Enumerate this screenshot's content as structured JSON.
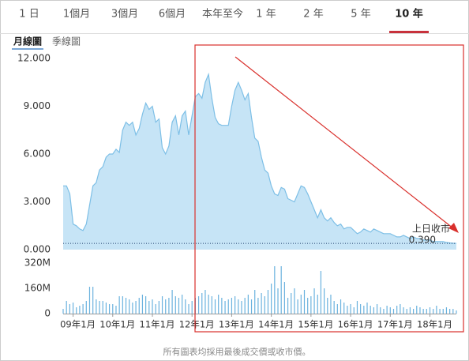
{
  "tabs": [
    "1 日",
    "1個月",
    "3個月",
    "6個月",
    "本年至今",
    "1 年",
    "2 年",
    "5 年",
    "10 年"
  ],
  "selected_tab": 8,
  "subtabs": [
    "月線圖",
    "季線圖"
  ],
  "selected_subtab": 0,
  "footer": "所有圖表均採用最後成交價或收市價。",
  "chart_data": {
    "type": "area",
    "price": {
      "color": "#7dbfe6",
      "fill": "#c6e4f6",
      "values": [
        4.0,
        4.0,
        3.5,
        1.6,
        1.5,
        1.3,
        1.2,
        1.6,
        2.8,
        4.0,
        4.2,
        5.0,
        5.2,
        5.8,
        6.0,
        6.0,
        6.3,
        6.1,
        7.5,
        8.0,
        7.8,
        8.0,
        7.2,
        7.6,
        8.5,
        9.2,
        8.8,
        9.0,
        8.0,
        8.2,
        6.4,
        6.0,
        6.5,
        8.0,
        8.4,
        7.2,
        8.4,
        8.7,
        7.2,
        8.4,
        9.6,
        9.8,
        9.5,
        10.5,
        11.0,
        9.5,
        8.3,
        7.9,
        7.8,
        7.8,
        7.8,
        9.0,
        10.0,
        10.5,
        10.0,
        9.4,
        9.8,
        8.3,
        7.0,
        6.8,
        5.8,
        5.0,
        4.8,
        4.0,
        3.5,
        3.4,
        3.9,
        3.8,
        3.2,
        3.1,
        3.0,
        3.5,
        4.0,
        3.9,
        3.5,
        3.0,
        2.5,
        2.0,
        2.5,
        2.0,
        1.8,
        2.0,
        1.7,
        1.5,
        1.6,
        1.3,
        1.4,
        1.4,
        1.2,
        1.0,
        1.1,
        1.3,
        1.2,
        1.1,
        1.3,
        1.2,
        1.1,
        1.0,
        1.0,
        1.0,
        0.9,
        0.8,
        0.8,
        0.9,
        0.8,
        0.7,
        0.8,
        0.7,
        0.7,
        0.6,
        0.6,
        0.6,
        0.5,
        0.5,
        0.5,
        0.5,
        0.45,
        0.42,
        0.4,
        0.39
      ],
      "ylim": [
        0,
        12
      ],
      "yticks": [
        {
          "value": 0,
          "label": "0.000"
        },
        {
          "value": 3,
          "label": "3.000"
        },
        {
          "value": 6,
          "label": "6.000"
        },
        {
          "value": 9,
          "label": "9.000"
        },
        {
          "value": 12,
          "label": "12.000"
        }
      ]
    },
    "volume": {
      "color": "#6ab2de",
      "values": [
        30,
        80,
        60,
        70,
        40,
        50,
        60,
        80,
        170,
        170,
        90,
        80,
        80,
        70,
        60,
        60,
        50,
        110,
        110,
        100,
        90,
        70,
        80,
        100,
        120,
        110,
        80,
        90,
        60,
        80,
        110,
        90,
        100,
        150,
        110,
        100,
        120,
        90,
        60,
        80,
        100,
        110,
        130,
        150,
        120,
        110,
        90,
        120,
        100,
        80,
        90,
        100,
        110,
        90,
        80,
        100,
        120,
        90,
        150,
        100,
        130,
        110,
        150,
        190,
        300,
        160,
        300,
        200,
        100,
        130,
        160,
        90,
        120,
        150,
        100,
        110,
        160,
        120,
        270,
        160,
        100,
        120,
        80,
        60,
        90,
        70,
        50,
        60,
        40,
        80,
        60,
        50,
        70,
        50,
        40,
        60,
        40,
        30,
        50,
        40,
        30,
        50,
        60,
        40,
        30,
        40,
        30,
        50,
        40,
        30,
        30,
        40,
        30,
        50,
        30,
        30,
        40,
        30,
        30,
        20
      ],
      "ylim": [
        0,
        320
      ],
      "yticks": [
        0,
        {
          "value": 160,
          "label": "160M"
        },
        {
          "value": 320,
          "label": "320M"
        }
      ]
    },
    "xlim": [
      0,
      119
    ],
    "xticks": [
      {
        "value": 3,
        "label": "09年1月"
      },
      {
        "value": 15,
        "label": "10年1月"
      },
      {
        "value": 27,
        "label": "11年1月"
      },
      {
        "value": 39,
        "label": "12年1月"
      },
      {
        "value": 51,
        "label": "13年1月"
      },
      {
        "value": 63,
        "label": "14年1月"
      },
      {
        "value": 75,
        "label": "15年1月"
      },
      {
        "value": 87,
        "label": "16年1月"
      },
      {
        "value": 99,
        "label": "17年1月"
      },
      {
        "value": 111,
        "label": "18年1月"
      }
    ],
    "prev_close": {
      "label": "上日收市",
      "value": 0.39,
      "value_label": "0.390"
    },
    "grid": false
  }
}
